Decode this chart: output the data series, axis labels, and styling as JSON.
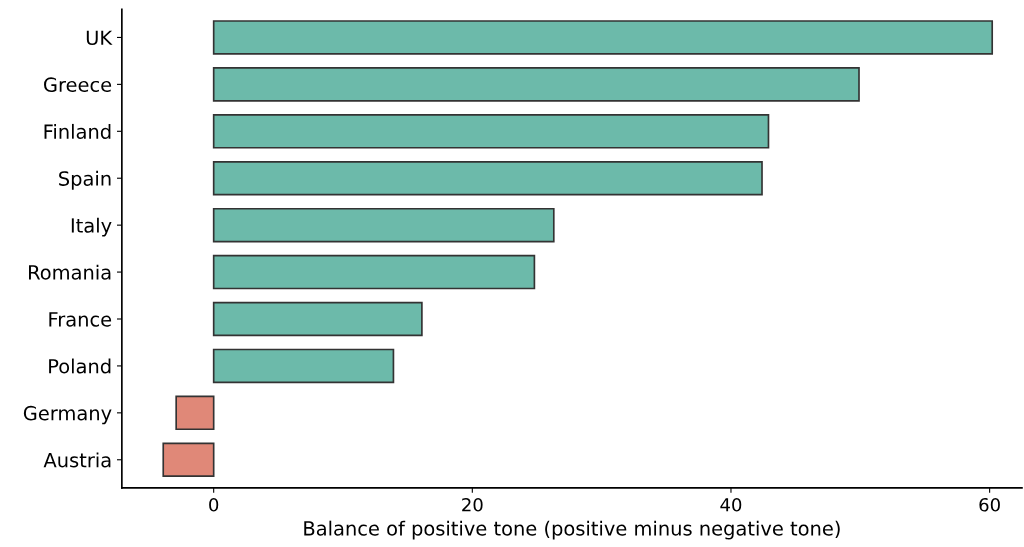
{
  "chart_data": {
    "type": "bar",
    "orientation": "horizontal",
    "xlabel": "Balance of positive tone (positive minus negative tone)",
    "categories": [
      "UK",
      "Greece",
      "Finland",
      "Spain",
      "Italy",
      "Romania",
      "France",
      "Poland",
      "Germany",
      "Austria"
    ],
    "values": [
      60.2,
      49.9,
      42.9,
      42.4,
      26.3,
      24.8,
      16.1,
      13.9,
      -2.9,
      -3.9
    ],
    "colors": [
      "#6cbaaa",
      "#6cbaaa",
      "#6cbaaa",
      "#6cbaaa",
      "#6cbaaa",
      "#6cbaaa",
      "#6cbaaa",
      "#6cbaaa",
      "#e08878",
      "#e08878"
    ],
    "xlim": [
      -7.1,
      62.5
    ],
    "xticks": [
      0,
      20,
      40,
      60
    ],
    "grid": false,
    "legend": false
  }
}
